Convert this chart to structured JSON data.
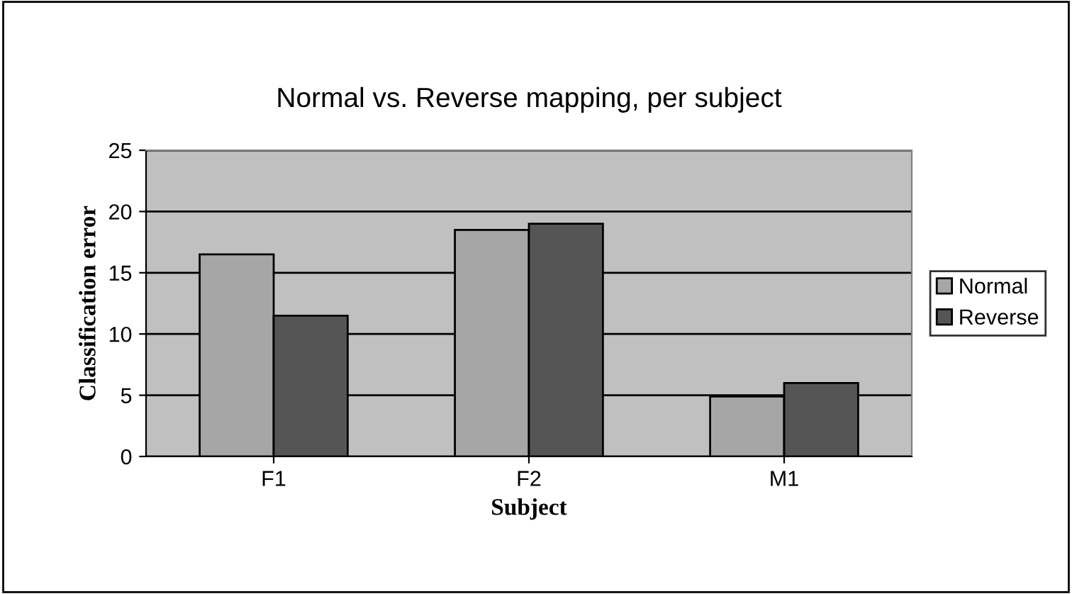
{
  "chart_data": {
    "type": "bar",
    "title": "Normal vs. Reverse mapping, per subject",
    "xlabel": "Subject",
    "ylabel": "Classification error",
    "categories": [
      "F1",
      "F2",
      "M1"
    ],
    "series": [
      {
        "name": "Normal",
        "color": "#a6a6a6",
        "values": [
          16.5,
          18.5,
          4.9
        ]
      },
      {
        "name": "Reverse",
        "color": "#555555",
        "values": [
          11.5,
          19,
          6
        ]
      }
    ],
    "ylim": [
      0,
      25
    ],
    "yticks": [
      0,
      5,
      10,
      15,
      20,
      25
    ],
    "grid": "y",
    "legend": "right"
  }
}
